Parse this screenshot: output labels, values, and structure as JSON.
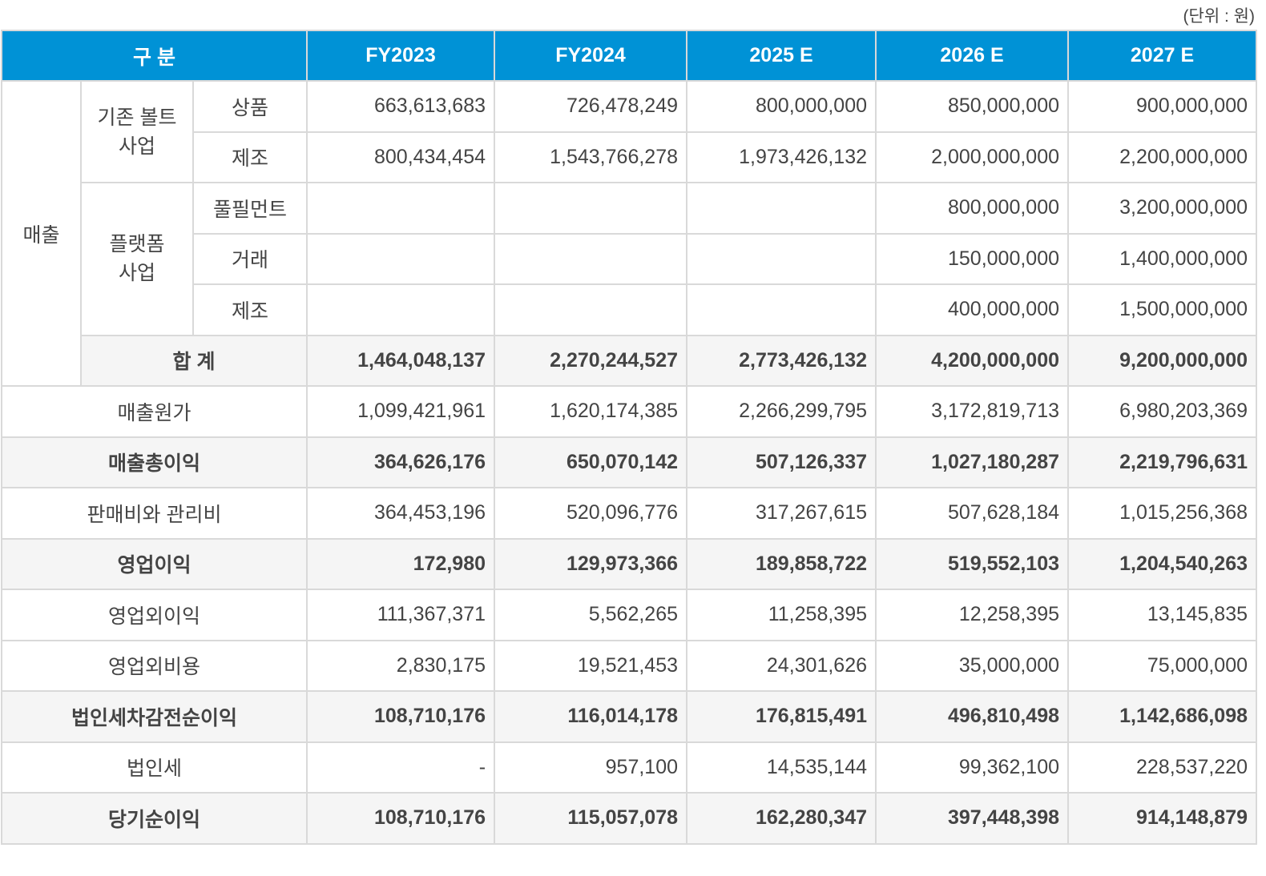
{
  "unit_note": "(단위 : 원)",
  "header": {
    "category": "구 분",
    "years": [
      "FY2023",
      "FY2024",
      "2025 E",
      "2026 E",
      "2027 E"
    ]
  },
  "sales": {
    "label": "매출",
    "groups": [
      {
        "label": "기존 볼트\n사업",
        "items": [
          {
            "label": "상품",
            "values": [
              "663,613,683",
              "726,478,249",
              "800,000,000",
              "850,000,000",
              "900,000,000"
            ]
          },
          {
            "label": "제조",
            "values": [
              "800,434,454",
              "1,543,766,278",
              "1,973,426,132",
              "2,000,000,000",
              "2,200,000,000"
            ]
          }
        ]
      },
      {
        "label": "플랫폼\n사업",
        "items": [
          {
            "label": "풀필먼트",
            "values": [
              "",
              "",
              "",
              "800,000,000",
              "3,200,000,000"
            ]
          },
          {
            "label": "거래",
            "values": [
              "",
              "",
              "",
              "150,000,000",
              "1,400,000,000"
            ]
          },
          {
            "label": "제조",
            "values": [
              "",
              "",
              "",
              "400,000,000",
              "1,500,000,000"
            ]
          }
        ]
      }
    ],
    "total": {
      "label": "합 계",
      "values": [
        "1,464,048,137",
        "2,270,244,527",
        "2,773,426,132",
        "4,200,000,000",
        "9,200,000,000"
      ]
    }
  },
  "rows": [
    {
      "label": "매출원가",
      "bold": false,
      "values": [
        "1,099,421,961",
        "1,620,174,385",
        "2,266,299,795",
        "3,172,819,713",
        "6,980,203,369"
      ]
    },
    {
      "label": "매출총이익",
      "bold": true,
      "values": [
        "364,626,176",
        "650,070,142",
        "507,126,337",
        "1,027,180,287",
        "2,219,796,631"
      ]
    },
    {
      "label": "판매비와 관리비",
      "bold": false,
      "values": [
        "364,453,196",
        "520,096,776",
        "317,267,615",
        "507,628,184",
        "1,015,256,368"
      ]
    },
    {
      "label": "영업이익",
      "bold": true,
      "values": [
        "172,980",
        "129,973,366",
        "189,858,722",
        "519,552,103",
        "1,204,540,263"
      ]
    },
    {
      "label": "영업외이익",
      "bold": false,
      "values": [
        "111,367,371",
        "5,562,265",
        "11,258,395",
        "12,258,395",
        "13,145,835"
      ]
    },
    {
      "label": "영업외비용",
      "bold": false,
      "values": [
        "2,830,175",
        "19,521,453",
        "24,301,626",
        "35,000,000",
        "75,000,000"
      ]
    },
    {
      "label": "법인세차감전순이익",
      "bold": true,
      "values": [
        "108,710,176",
        "116,014,178",
        "176,815,491",
        "496,810,498",
        "1,142,686,098"
      ]
    },
    {
      "label": "법인세",
      "bold": false,
      "values": [
        "-",
        "957,100",
        "14,535,144",
        "99,362,100",
        "228,537,220"
      ]
    },
    {
      "label": "당기순이익",
      "bold": true,
      "values": [
        "108,710,176",
        "115,057,078",
        "162,280,347",
        "397,448,398",
        "914,148,879"
      ]
    }
  ],
  "colors": {
    "header_bg": "#0092d6",
    "highlight_row": "#f5f5f5",
    "border": "#d9d9d9",
    "text": "#444444"
  }
}
